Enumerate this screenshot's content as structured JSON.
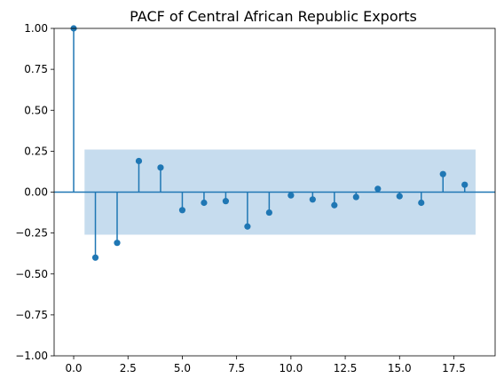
{
  "chart_data": {
    "type": "stem",
    "title": "PACF of Central African Republic Exports",
    "xlabel": "",
    "ylabel": "",
    "xlim": [
      -0.9,
      19.4
    ],
    "ylim": [
      -1.0,
      1.0
    ],
    "x_ticks": [
      0,
      2.5,
      5,
      7.5,
      10,
      12.5,
      15,
      17.5
    ],
    "x_tick_labels": [
      "0.0",
      "2.5",
      "5.0",
      "7.5",
      "10.0",
      "12.5",
      "15.0",
      "17.5"
    ],
    "y_ticks": [
      -1,
      -0.75,
      -0.5,
      -0.25,
      0,
      0.25,
      0.5,
      0.75,
      1
    ],
    "y_tick_labels": [
      "−1.00",
      "−0.75",
      "−0.50",
      "−0.25",
      "0.00",
      "0.25",
      "0.50",
      "0.75",
      "1.00"
    ],
    "grid": false,
    "lags": [
      0,
      1,
      2,
      3,
      4,
      5,
      6,
      7,
      8,
      9,
      10,
      11,
      12,
      13,
      14,
      15,
      16,
      17,
      18
    ],
    "values": [
      1.0,
      -0.4,
      -0.31,
      0.19,
      0.15,
      -0.11,
      -0.065,
      -0.055,
      -0.21,
      -0.125,
      -0.02,
      -0.045,
      -0.08,
      -0.03,
      0.02,
      -0.025,
      -0.065,
      0.11,
      0.045
    ],
    "confidence_band": {
      "x_range": [
        0.5,
        18.5
      ],
      "lower": -0.26,
      "upper": 0.26
    },
    "colors": {
      "stem": "#1f77b4",
      "band": "#c6dcee",
      "axis": "#000000"
    }
  }
}
